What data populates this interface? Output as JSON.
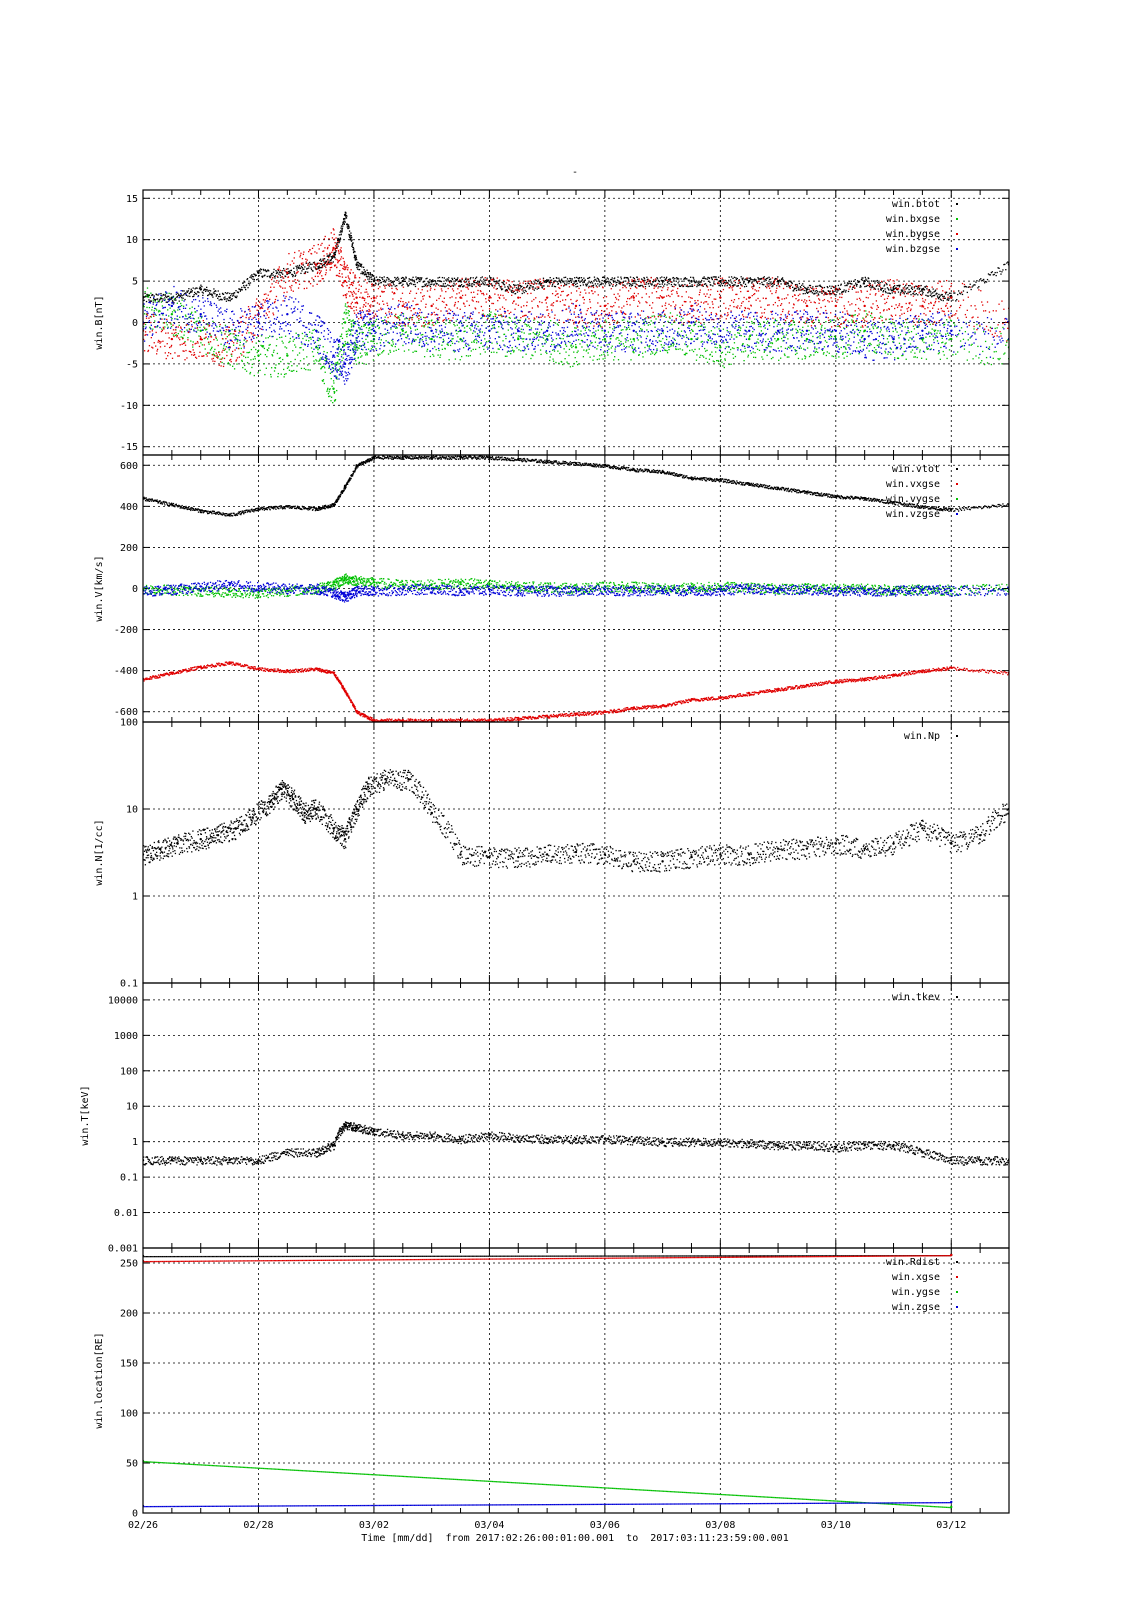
{
  "figure": {
    "title": "-",
    "time_label": "Time [mm/dd]  from 2017:02:26:00:01:00.001  to  2017:03:11:23:59:00.001"
  },
  "colors": {
    "black": "#000000",
    "red": "#e00000",
    "green": "#00c000",
    "blue": "#0000d8"
  },
  "chart_data": [
    {
      "type": "scatter",
      "ylabel": "win.B[nT]",
      "yscale": "linear",
      "ylim": [
        -16,
        16
      ],
      "yticks": [
        -15,
        -10,
        -5,
        0,
        5,
        10,
        15
      ],
      "ytick_labels": [
        "-15",
        "-10",
        "-5",
        "0",
        "5",
        "10",
        "15"
      ],
      "xlim": [
        0,
        15
      ],
      "xticks": [
        0,
        2,
        4,
        6,
        8,
        10,
        12,
        14
      ],
      "xtick_labels": [
        "02/26",
        "02/28",
        "03/02",
        "03/04",
        "03/06",
        "03/08",
        "03/10",
        "03/12"
      ],
      "grid": true,
      "legend": "top-right",
      "series": [
        {
          "name": "win.btot",
          "color": "#000000",
          "x": [
            0,
            0.5,
            1,
            1.5,
            2,
            2.5,
            3,
            3.3,
            3.5,
            3.7,
            4,
            4.5,
            5,
            5.5,
            6,
            6.5,
            7,
            7.5,
            8,
            8.5,
            9,
            9.5,
            10,
            10.5,
            11,
            11.5,
            12,
            12.5,
            13,
            13.5,
            14,
            15
          ],
          "y": [
            3,
            3,
            4,
            3,
            6,
            6,
            7,
            8,
            13,
            7,
            5,
            5,
            5,
            5,
            5,
            4,
            5,
            5,
            5,
            5,
            5,
            5,
            5,
            5,
            5,
            4,
            4,
            5,
            4,
            4,
            3,
            7
          ]
        },
        {
          "name": "win.bxgse",
          "color": "#00c000",
          "x": [
            0,
            0.5,
            1,
            1.5,
            2,
            2.5,
            3,
            3.3,
            3.5,
            3.7,
            4,
            4.5,
            5,
            5.5,
            6,
            6.5,
            7,
            7.5,
            8,
            8.5,
            9,
            9.5,
            10,
            10.5,
            11,
            11.5,
            12,
            12.5,
            13,
            13.5,
            14,
            15
          ],
          "y": [
            2,
            1,
            -1,
            -3,
            -4,
            -4,
            -3,
            -8,
            0,
            -3,
            -2,
            -1,
            -2,
            -2,
            -1,
            -2,
            -2,
            -3,
            -2,
            -2,
            -1,
            -2,
            -3,
            -2,
            -2,
            -2,
            -2,
            -1,
            -2,
            -2,
            -2,
            -3
          ]
        },
        {
          "name": "win.bygse",
          "color": "#e00000",
          "x": [
            0,
            0.5,
            1,
            1.5,
            2,
            2.5,
            3,
            3.3,
            3.5,
            3.7,
            4,
            4.5,
            5,
            5.5,
            6,
            6.5,
            7,
            7.5,
            8,
            8.5,
            9,
            9.5,
            10,
            10.5,
            11,
            11.5,
            12,
            12.5,
            13,
            13.5,
            14,
            15
          ],
          "y": [
            -1,
            -2,
            -2,
            -3,
            1,
            6,
            7,
            9,
            5,
            3,
            3,
            2,
            2,
            3,
            3,
            3,
            3,
            2,
            2,
            3,
            3,
            2,
            3,
            3,
            3,
            2,
            2,
            2,
            3,
            2,
            3,
            0
          ]
        },
        {
          "name": "win.bzgse",
          "color": "#0000d8",
          "x": [
            0,
            0.5,
            1,
            1.5,
            2,
            2.5,
            3,
            3.3,
            3.5,
            3.7,
            4,
            4.5,
            5,
            5.5,
            6,
            6.5,
            7,
            7.5,
            8,
            8.5,
            9,
            9.5,
            10,
            10.5,
            11,
            11.5,
            12,
            12.5,
            13,
            13.5,
            14,
            15
          ],
          "y": [
            0,
            2,
            1,
            -1,
            0,
            1,
            -1,
            -4,
            -5,
            -1,
            -1,
            0,
            -1,
            -1,
            -1,
            -1,
            -1,
            0,
            -1,
            -1,
            -1,
            0,
            -1,
            -1,
            -1,
            -1,
            -1,
            -2,
            -2,
            -1,
            -1,
            -2
          ]
        }
      ]
    },
    {
      "type": "scatter",
      "ylabel": "win.V[km/s]",
      "yscale": "linear",
      "ylim": [
        -650,
        650
      ],
      "yticks": [
        -600,
        -400,
        -200,
        0,
        200,
        400,
        600
      ],
      "ytick_labels": [
        "-600",
        "-400",
        "-200",
        "0",
        "200",
        "400",
        "600"
      ],
      "xlim": [
        0,
        15
      ],
      "xticks": [
        0,
        2,
        4,
        6,
        8,
        10,
        12,
        14
      ],
      "xtick_labels": [
        "02/26",
        "02/28",
        "03/02",
        "03/04",
        "03/06",
        "03/08",
        "03/10",
        "03/12"
      ],
      "grid": true,
      "legend": "top-right",
      "series": [
        {
          "name": "win.vtot",
          "color": "#000000",
          "x": [
            0,
            0.5,
            1,
            1.5,
            2,
            2.5,
            3,
            3.3,
            3.5,
            3.7,
            4,
            4.5,
            5,
            5.5,
            6,
            6.5,
            7,
            7.5,
            8,
            8.5,
            9,
            9.5,
            10,
            10.5,
            11,
            11.5,
            12,
            12.5,
            13,
            13.5,
            14,
            15
          ],
          "y": [
            440,
            410,
            380,
            360,
            390,
            400,
            390,
            410,
            500,
            600,
            640,
            640,
            640,
            640,
            640,
            630,
            620,
            610,
            600,
            580,
            570,
            540,
            530,
            510,
            490,
            470,
            450,
            440,
            420,
            400,
            385,
            410
          ]
        },
        {
          "name": "win.vxgse",
          "color": "#e00000",
          "x": [
            0,
            0.5,
            1,
            1.5,
            2,
            2.5,
            3,
            3.3,
            3.5,
            3.7,
            4,
            4.5,
            5,
            5.5,
            6,
            6.5,
            7,
            7.5,
            8,
            8.5,
            9,
            9.5,
            10,
            10.5,
            11,
            11.5,
            12,
            12.5,
            13,
            13.5,
            14,
            15
          ],
          "y": [
            -440,
            -410,
            -380,
            -360,
            -390,
            -400,
            -390,
            -410,
            -500,
            -600,
            -640,
            -640,
            -640,
            -640,
            -640,
            -630,
            -620,
            -610,
            -600,
            -580,
            -570,
            -540,
            -530,
            -510,
            -490,
            -470,
            -450,
            -440,
            -420,
            -400,
            -385,
            -410
          ]
        },
        {
          "name": "win.vygse",
          "color": "#00c000",
          "x": [
            0,
            0.5,
            1,
            1.5,
            2,
            2.5,
            3,
            3.3,
            3.5,
            3.7,
            4,
            4.5,
            5,
            5.5,
            6,
            6.5,
            7,
            7.5,
            8,
            8.5,
            9,
            9.5,
            10,
            10.5,
            11,
            11.5,
            12,
            12.5,
            13,
            13.5,
            14,
            15
          ],
          "y": [
            0,
            -5,
            -10,
            -15,
            -20,
            -10,
            0,
            20,
            50,
            40,
            30,
            20,
            20,
            30,
            20,
            10,
            10,
            0,
            10,
            10,
            0,
            5,
            10,
            5,
            0,
            5,
            0,
            0,
            -5,
            -5,
            -5,
            0
          ]
        },
        {
          "name": "win.vzgse",
          "color": "#0000d8",
          "x": [
            0,
            0.5,
            1,
            1.5,
            2,
            2.5,
            3,
            3.3,
            3.5,
            3.7,
            4,
            4.5,
            5,
            5.5,
            6,
            6.5,
            7,
            7.5,
            8,
            8.5,
            9,
            9.5,
            10,
            10.5,
            11,
            11.5,
            12,
            12.5,
            13,
            13.5,
            14,
            15
          ],
          "y": [
            -10,
            -5,
            10,
            20,
            10,
            0,
            0,
            -20,
            -40,
            -10,
            -10,
            -5,
            0,
            -10,
            -5,
            -10,
            -10,
            -10,
            -5,
            -10,
            -5,
            -10,
            -5,
            0,
            -5,
            -5,
            -10,
            -10,
            -10,
            -5,
            -10,
            -5
          ]
        }
      ]
    },
    {
      "type": "scatter",
      "ylabel": "win.N[1/cc]",
      "yscale": "log",
      "ylim": [
        0.1,
        100
      ],
      "yticks": [
        0.1,
        1,
        10,
        100
      ],
      "ytick_labels": [
        "0.1",
        "1",
        "10",
        "100"
      ],
      "xlim": [
        0,
        15
      ],
      "xticks": [
        0,
        2,
        4,
        6,
        8,
        10,
        12,
        14
      ],
      "xtick_labels": [
        "02/26",
        "02/28",
        "03/02",
        "03/04",
        "03/06",
        "03/08",
        "03/10",
        "03/12"
      ],
      "grid": true,
      "legend": "top-right",
      "series": [
        {
          "name": "win.Np",
          "color": "#000000",
          "x": [
            0,
            0.3,
            0.6,
            1,
            1.3,
            1.6,
            1.9,
            2.2,
            2.4,
            2.6,
            2.8,
            3.0,
            3.3,
            3.5,
            3.7,
            3.9,
            4.2,
            4.6,
            5,
            5.5,
            6,
            6.5,
            7,
            7.5,
            8,
            8.5,
            9,
            9.5,
            10,
            10.5,
            11,
            11.5,
            12,
            12.5,
            13,
            13.5,
            14,
            14.5,
            15
          ],
          "y": [
            3,
            3.5,
            4,
            4.5,
            5,
            6,
            8,
            12,
            17,
            13,
            9,
            10,
            6,
            4.5,
            10,
            18,
            22,
            22,
            9,
            3,
            2.8,
            2.8,
            3,
            3.2,
            3,
            2.5,
            2.5,
            2.8,
            3,
            3,
            3.5,
            3.5,
            4,
            3.5,
            4,
            6,
            4,
            5,
            10
          ]
        }
      ]
    },
    {
      "type": "scatter",
      "ylabel": "win.T[keV]",
      "yscale": "log",
      "ylim": [
        0.001,
        30000
      ],
      "yticks": [
        0.001,
        0.01,
        0.1,
        1,
        10,
        100,
        1000,
        10000
      ],
      "ytick_labels": [
        "0.001",
        "0.01",
        "0.1",
        "1",
        "10",
        "100",
        "1000",
        "10000"
      ],
      "xlim": [
        0,
        15
      ],
      "xticks": [
        0,
        2,
        4,
        6,
        8,
        10,
        12,
        14
      ],
      "xtick_labels": [
        "02/26",
        "02/28",
        "03/02",
        "03/04",
        "03/06",
        "03/08",
        "03/10",
        "03/12"
      ],
      "grid": true,
      "legend": "top-right",
      "series": [
        {
          "name": "win.tkev",
          "color": "#000000",
          "x": [
            0,
            0.5,
            1,
            1.5,
            2,
            2.5,
            3,
            3.3,
            3.5,
            3.7,
            4,
            4.5,
            5,
            5.5,
            6,
            6.5,
            7,
            7.5,
            8,
            8.5,
            9,
            9.5,
            10,
            10.5,
            11,
            11.5,
            12,
            12.5,
            13,
            13.5,
            14,
            14.5,
            15
          ],
          "y": [
            0.3,
            0.3,
            0.3,
            0.3,
            0.3,
            0.5,
            0.5,
            0.8,
            3,
            2.5,
            2,
            1.5,
            1.5,
            1.2,
            1.5,
            1.3,
            1.2,
            1.2,
            1.2,
            1.1,
            1,
            1,
            1,
            0.9,
            0.8,
            0.8,
            0.7,
            0.8,
            0.8,
            0.5,
            0.3,
            0.3,
            0.3
          ]
        }
      ]
    },
    {
      "type": "scatter",
      "ylabel": "win.location[RE]",
      "yscale": "linear",
      "ylim": [
        0,
        265
      ],
      "yticks": [
        0,
        50,
        100,
        150,
        200,
        250
      ],
      "ytick_labels": [
        "0",
        "50",
        "100",
        "150",
        "200",
        "250"
      ],
      "xlim": [
        0,
        15
      ],
      "xticks": [
        0,
        2,
        4,
        6,
        8,
        10,
        12,
        14
      ],
      "xtick_labels": [
        "02/26",
        "02/28",
        "03/02",
        "03/04",
        "03/06",
        "03/08",
        "03/10",
        "03/12"
      ],
      "grid": true,
      "legend": "top-right",
      "series": [
        {
          "name": "win.Rdist",
          "color": "#000000",
          "x": [
            0,
            14
          ],
          "y": [
            257,
            258
          ]
        },
        {
          "name": "win.xgse",
          "color": "#e00000",
          "x": [
            0,
            14
          ],
          "y": [
            252,
            258
          ]
        },
        {
          "name": "win.ygse",
          "color": "#00c000",
          "x": [
            0,
            14
          ],
          "y": [
            52,
            6
          ]
        },
        {
          "name": "win.zgse",
          "color": "#0000d8",
          "x": [
            0,
            14
          ],
          "y": [
            7,
            11
          ]
        }
      ]
    }
  ]
}
